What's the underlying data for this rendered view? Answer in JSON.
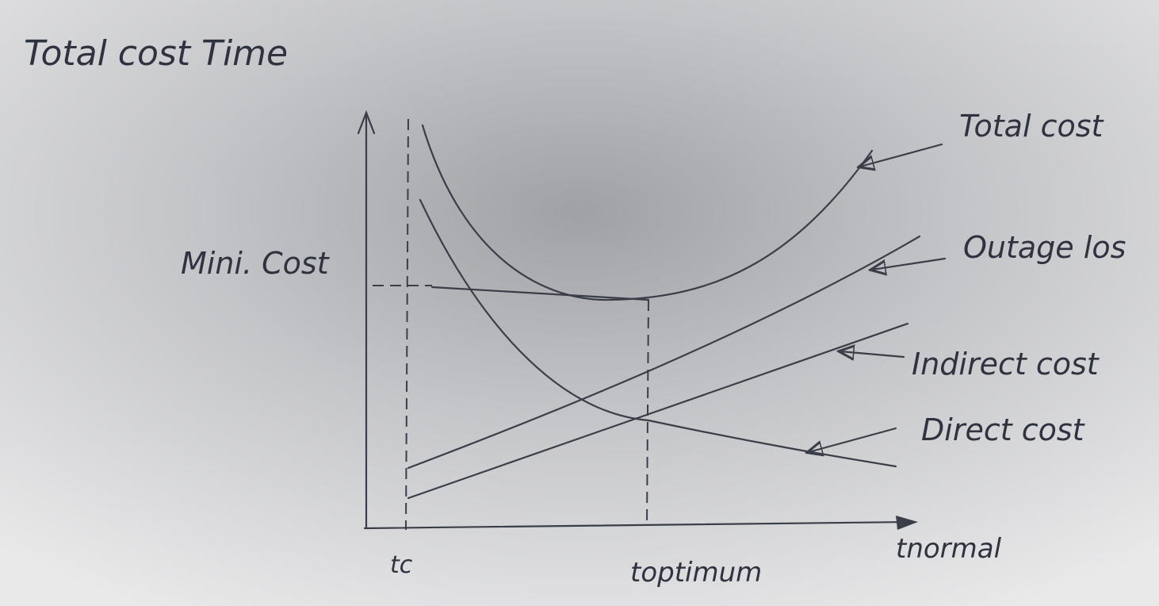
{
  "axis": {
    "title": "Total cost Time",
    "x_labels": [
      "tc",
      "toptimum",
      "tnormal"
    ]
  },
  "annotation": "Mini. Cost",
  "curves": [
    {
      "label": "Total cost"
    },
    {
      "label": "Outage los"
    },
    {
      "label": "Indirect cost"
    },
    {
      "label": "Direct cost"
    }
  ]
}
